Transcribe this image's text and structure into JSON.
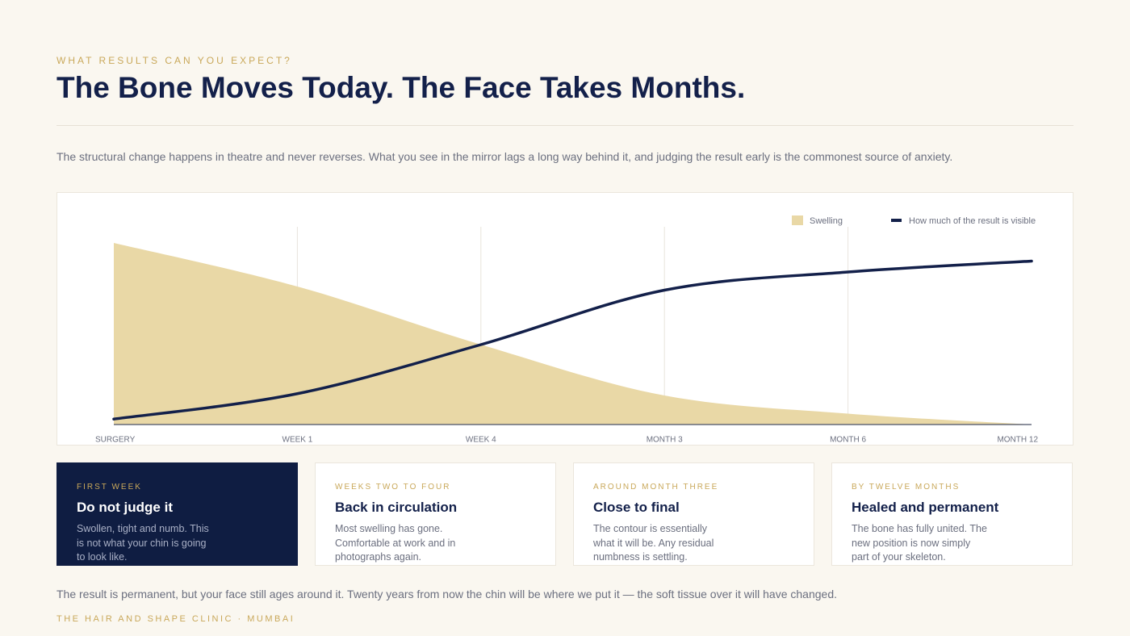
{
  "eyebrow": "WHAT RESULTS CAN YOU EXPECT?",
  "title": "The Bone Moves Today. The Face Takes Months.",
  "intro": "The structural change happens in theatre and never reverses. What you see in the mirror lags a long way behind it, and judging the result early is the commonest source of anxiety.",
  "chart_data": {
    "type": "area",
    "categories": [
      "SURGERY",
      "WEEK 1",
      "WEEK 4",
      "MONTH 3",
      "MONTH 6",
      "MONTH 12"
    ],
    "series": [
      {
        "name": "Swelling",
        "type": "area",
        "color": "#e9d8a6",
        "values": [
          100,
          76,
          44,
          16,
          6,
          0
        ]
      },
      {
        "name": "How much of the result is visible",
        "type": "line",
        "color": "#13204a",
        "values": [
          3,
          17,
          44,
          74,
          84,
          90
        ]
      }
    ],
    "ylim": [
      0,
      100
    ],
    "grid": true,
    "legend": "top-right"
  },
  "cards": [
    {
      "label": "FIRST WEEK",
      "heading": "Do not judge it",
      "text": "Swollen, tight and numb. This is not what your chin is going to look like."
    },
    {
      "label": "WEEKS TWO TO FOUR",
      "heading": "Back in circulation",
      "text": "Most swelling has gone. Comfortable at work and in photographs again."
    },
    {
      "label": "AROUND MONTH THREE",
      "heading": "Close to final",
      "text": "The contour is essentially what it will be. Any residual numbness is settling."
    },
    {
      "label": "BY TWELVE MONTHS",
      "heading": "Healed and permanent",
      "text": "The bone has fully united. The new position is now simply part of your skeleton."
    }
  ],
  "footnote": "The result is permanent, but your face still ages around it. Twenty years from now the chin will be where we put it — the soft tissue over it will have changed.",
  "footer": "THE HAIR AND SHAPE CLINIC · MUMBAI"
}
